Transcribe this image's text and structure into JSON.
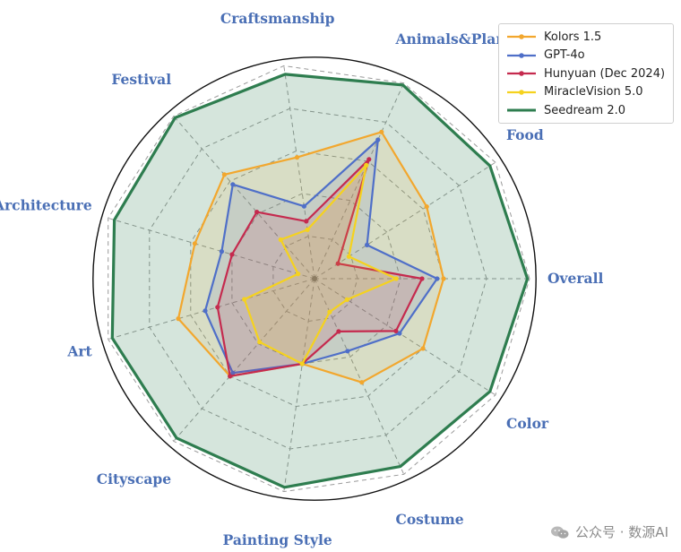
{
  "chart_data": {
    "type": "radar",
    "categories": [
      "Overall",
      "Food",
      "Animals&Plants",
      "Craftsmanship",
      "Festival",
      "Architecture",
      "Art",
      "Cityscape",
      "Painting Style",
      "Costume",
      "Color"
    ],
    "rlim": [
      0,
      1
    ],
    "grid": true,
    "legend_position": "top-right",
    "series": [
      {
        "name": "Kolors 1.5",
        "color": "#f2a72e",
        "fill": true,
        "values": [
          0.6,
          0.62,
          0.75,
          0.57,
          0.64,
          0.58,
          0.66,
          0.6,
          0.4,
          0.53,
          0.6
        ]
      },
      {
        "name": "GPT-4o",
        "color": "#4f6fc8",
        "fill": true,
        "values": [
          0.57,
          0.29,
          0.71,
          0.34,
          0.58,
          0.45,
          0.53,
          0.58,
          0.4,
          0.37,
          0.47
        ]
      },
      {
        "name": "Hunyuan (Dec 2024)",
        "color": "#c52a4e",
        "fill": true,
        "values": [
          0.5,
          0.13,
          0.61,
          0.27,
          0.41,
          0.4,
          0.47,
          0.6,
          0.4,
          0.27,
          0.45
        ]
      },
      {
        "name": "MiracleVision 5.0",
        "color": "#f5d21e",
        "fill": true,
        "values": [
          0.38,
          0.19,
          0.58,
          0.23,
          0.24,
          0.08,
          0.34,
          0.39,
          0.4,
          0.17,
          0.18
        ]
      },
      {
        "name": "Seedream 2.0",
        "color": "#2e7d4f",
        "fill": true,
        "thick": true,
        "values": [
          0.99,
          0.97,
          0.99,
          0.96,
          0.99,
          0.97,
          0.98,
          0.98,
          0.98,
          0.96,
          0.97
        ]
      }
    ]
  },
  "watermark": {
    "text": "公众号 · 数源AI",
    "icon": "wechat-icon"
  }
}
